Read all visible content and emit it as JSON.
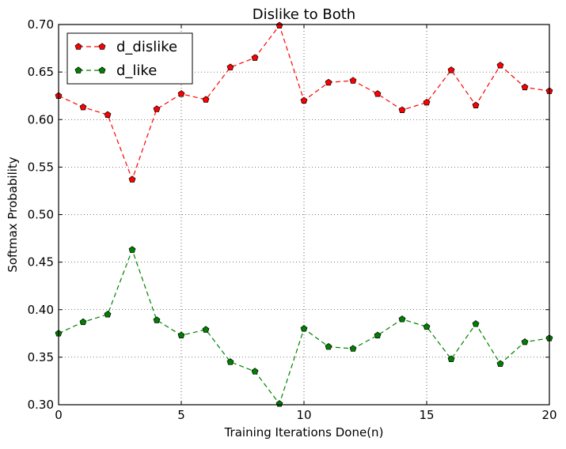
{
  "chart_data": {
    "type": "line",
    "title": "Dislike to Both",
    "xlabel": "Training Iterations Done(n)",
    "ylabel": "Softmax Probability",
    "xlim": [
      0,
      20
    ],
    "ylim": [
      0.3,
      0.7
    ],
    "x_ticks": [
      0,
      5,
      10,
      15,
      20
    ],
    "y_ticks": [
      0.3,
      0.35,
      0.4,
      0.45,
      0.5,
      0.55,
      0.6,
      0.65,
      0.7
    ],
    "grid": true,
    "legend_position": "top-left",
    "x": [
      0,
      1,
      2,
      3,
      4,
      5,
      6,
      7,
      8,
      9,
      10,
      11,
      12,
      13,
      14,
      15,
      16,
      17,
      18,
      19,
      20
    ],
    "series": [
      {
        "name": "d_dislike",
        "color": "#ff0000",
        "marker": "pentagon",
        "linestyle": "dashed",
        "values": [
          0.625,
          0.613,
          0.605,
          0.537,
          0.611,
          0.627,
          0.621,
          0.655,
          0.665,
          0.699,
          0.62,
          0.639,
          0.641,
          0.627,
          0.61,
          0.618,
          0.652,
          0.615,
          0.657,
          0.634,
          0.63
        ]
      },
      {
        "name": "d_like",
        "color": "#008000",
        "marker": "pentagon",
        "linestyle": "dashed",
        "values": [
          0.375,
          0.387,
          0.395,
          0.463,
          0.389,
          0.373,
          0.379,
          0.345,
          0.335,
          0.301,
          0.38,
          0.361,
          0.359,
          0.373,
          0.39,
          0.382,
          0.348,
          0.385,
          0.343,
          0.366,
          0.37
        ]
      }
    ]
  }
}
